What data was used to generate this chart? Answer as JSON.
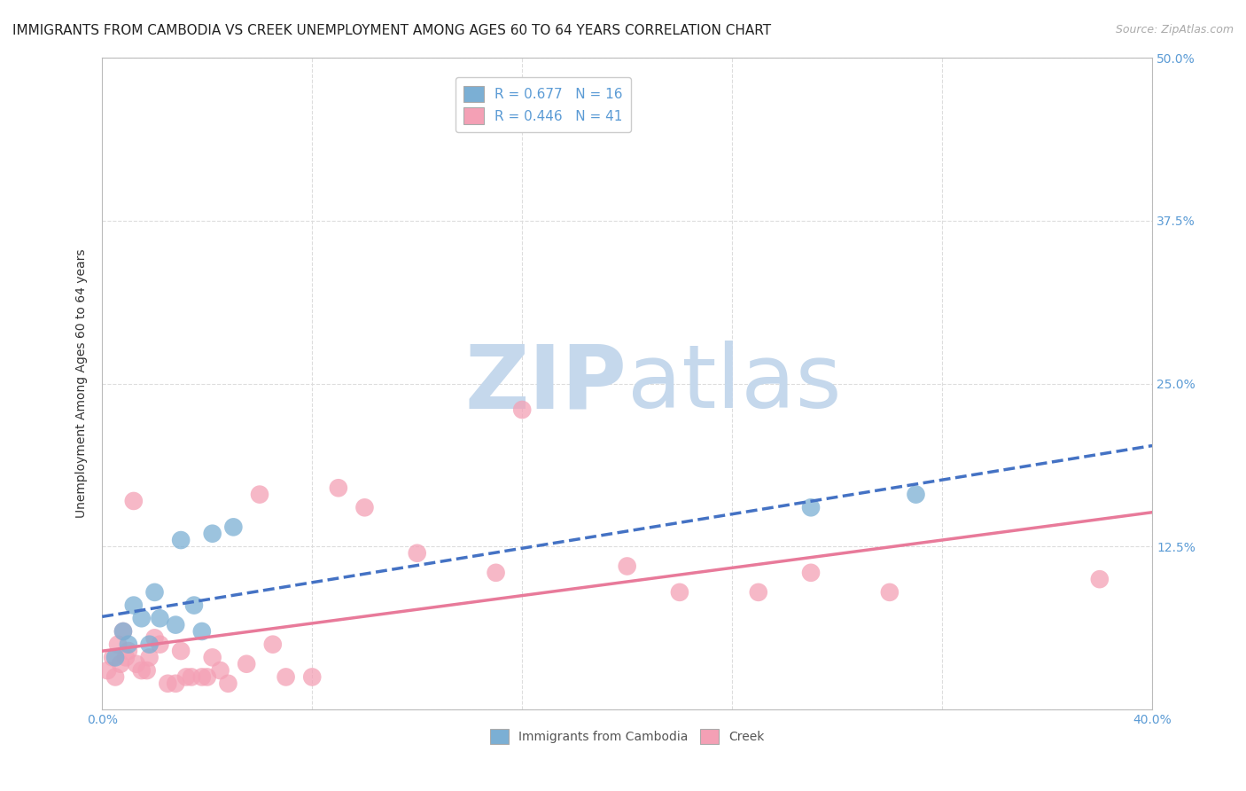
{
  "title": "IMMIGRANTS FROM CAMBODIA VS CREEK UNEMPLOYMENT AMONG AGES 60 TO 64 YEARS CORRELATION CHART",
  "source": "Source: ZipAtlas.com",
  "ylabel": "Unemployment Among Ages 60 to 64 years",
  "xlim": [
    0.0,
    0.4
  ],
  "ylim": [
    0.0,
    0.5
  ],
  "xticks": [
    0.0,
    0.08,
    0.16,
    0.24,
    0.32,
    0.4
  ],
  "yticks": [
    0.0,
    0.125,
    0.25,
    0.375,
    0.5
  ],
  "ytick_labels": [
    "",
    "12.5%",
    "25.0%",
    "37.5%",
    "50.0%"
  ],
  "xtick_labels": [
    "0.0%",
    "",
    "",
    "",
    "",
    "40.0%"
  ],
  "blue_R": 0.677,
  "blue_N": 16,
  "pink_R": 0.446,
  "pink_N": 41,
  "blue_color": "#7bafd4",
  "pink_color": "#f4a0b5",
  "blue_scatter_x": [
    0.005,
    0.008,
    0.01,
    0.012,
    0.015,
    0.018,
    0.02,
    0.022,
    0.028,
    0.03,
    0.035,
    0.038,
    0.042,
    0.05,
    0.27,
    0.31
  ],
  "blue_scatter_y": [
    0.04,
    0.06,
    0.05,
    0.08,
    0.07,
    0.05,
    0.09,
    0.07,
    0.065,
    0.13,
    0.08,
    0.06,
    0.135,
    0.14,
    0.155,
    0.165
  ],
  "pink_scatter_x": [
    0.002,
    0.004,
    0.005,
    0.006,
    0.007,
    0.008,
    0.009,
    0.01,
    0.012,
    0.013,
    0.015,
    0.017,
    0.018,
    0.02,
    0.022,
    0.025,
    0.028,
    0.03,
    0.032,
    0.034,
    0.038,
    0.04,
    0.042,
    0.045,
    0.048,
    0.055,
    0.06,
    0.065,
    0.07,
    0.08,
    0.09,
    0.1,
    0.12,
    0.15,
    0.16,
    0.2,
    0.22,
    0.25,
    0.27,
    0.3,
    0.38
  ],
  "pink_scatter_y": [
    0.03,
    0.04,
    0.025,
    0.05,
    0.035,
    0.06,
    0.04,
    0.045,
    0.16,
    0.035,
    0.03,
    0.03,
    0.04,
    0.055,
    0.05,
    0.02,
    0.02,
    0.045,
    0.025,
    0.025,
    0.025,
    0.025,
    0.04,
    0.03,
    0.02,
    0.035,
    0.165,
    0.05,
    0.025,
    0.025,
    0.17,
    0.155,
    0.12,
    0.105,
    0.23,
    0.11,
    0.09,
    0.09,
    0.105,
    0.09,
    0.1
  ],
  "background_color": "#ffffff",
  "grid_color": "#dddddd",
  "title_fontsize": 11,
  "label_fontsize": 10,
  "tick_fontsize": 10,
  "legend_fontsize": 11,
  "watermark_zip": "ZIP",
  "watermark_atlas": "atlas",
  "watermark_color_zip": "#c5d8ec",
  "watermark_color_atlas": "#c5d8ec",
  "watermark_fontsize": 72
}
